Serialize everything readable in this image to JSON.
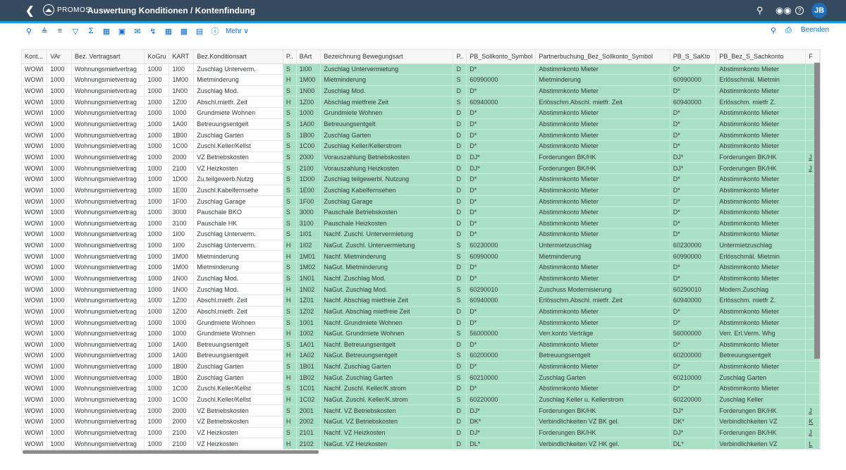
{
  "shell": {
    "back_icon": "chevron-left-icon",
    "logo": "PROMOS",
    "title": "Auswertung Konditionen / Kontenfindung",
    "icons": [
      "search-icon",
      "binoculars-icon",
      "help-icon"
    ],
    "avatar": "JB"
  },
  "toolbar": {
    "icons": [
      "zoom-icon",
      "sort-ascending-icon",
      "sort-descending-icon",
      "filter-icon",
      "sum-icon",
      "export-icon",
      "import-icon",
      "email-icon",
      "chart-icon",
      "layout-icon",
      "layout-change-icon",
      "layout-save-icon",
      "info-icon"
    ],
    "more_label": "Mehr ∨",
    "right_search_icon": "search-icon",
    "print_icon": "print-icon",
    "exit_label": "Beenden"
  },
  "colors": {
    "shell": "#354a5f",
    "accent": "#1a9be6",
    "highlight": "#a9dfc4"
  },
  "table": {
    "columns": [
      "Kont...",
      "VAr",
      "Bez. Vertragsart",
      "KoGru",
      "KART",
      "Bez.Konditionsart",
      "P..",
      "BArt",
      "Bezeichnung Bewegungsart",
      "P..",
      "PB_Sollkonto_Symbol",
      "Partnerbuchung_Bez_Sollkonto_Symbol",
      "PB_S_SaKto",
      "PB_Bez_S_Sachkonto",
      "F"
    ],
    "rows": [
      [
        "WOWI",
        "1000",
        "Wohnungsmietvertrag",
        "1000",
        "1I00",
        "Zuschlag Unterverm.",
        "S",
        "1I00",
        "Zuschlag Untervermietung",
        "D",
        "D*",
        "Abstimmkonto Mieter",
        "D*",
        "Abstimmkonto Mieter",
        ""
      ],
      [
        "WOWI",
        "1000",
        "Wohnungsmietvertrag",
        "1000",
        "1M00",
        "Mietminderung",
        "H",
        "1M00",
        "Mietminderung",
        "S",
        "60990000",
        "Mietminderung",
        "60990000",
        "Erlösschmäl. Mietmin",
        ""
      ],
      [
        "WOWI",
        "1000",
        "Wohnungsmietvertrag",
        "1000",
        "1N00",
        "Zuschlag Mod.",
        "S",
        "1N00",
        "Zuschlag Mod.",
        "D",
        "D*",
        "Abstimmkonto Mieter",
        "D*",
        "Abstimmkonto Mieter",
        ""
      ],
      [
        "WOWI",
        "1000",
        "Wohnungsmietvertrag",
        "1000",
        "1Z00",
        "Abschl.mietfr. Zeit",
        "H",
        "1Z00",
        "Abschlag mietfreie Zeit",
        "S",
        "60940000",
        "Erlösschm.Abschl. mietfr. Zeit",
        "60940000",
        "Erlösschm. mietfr Z.",
        ""
      ],
      [
        "WOWI",
        "1000",
        "Wohnungsmietvertrag",
        "1000",
        "1000",
        "Grundmiete Wohnen",
        "S",
        "1000",
        "Grundmiete Wohnen",
        "D",
        "D*",
        "Abstimmkonto Mieter",
        "D*",
        "Abstimmkonto Mieter",
        ""
      ],
      [
        "WOWI",
        "1000",
        "Wohnungsmietvertrag",
        "1000",
        "1A00",
        "Betreuungsentgelt",
        "S",
        "1A00",
        "Betreuungsentgelt",
        "D",
        "D*",
        "Abstimmkonto Mieter",
        "D*",
        "Abstimmkonto Mieter",
        ""
      ],
      [
        "WOWI",
        "1000",
        "Wohnungsmietvertrag",
        "1000",
        "1B00",
        "Zuschlag Garten",
        "S",
        "1B00",
        "Zuschlag Garten",
        "D",
        "D*",
        "Abstimmkonto Mieter",
        "D*",
        "Abstimmkonto Mieter",
        ""
      ],
      [
        "WOWI",
        "1000",
        "Wohnungsmietvertrag",
        "1000",
        "1C00",
        "Zuschl.Keller/Kellst",
        "S",
        "1C00",
        "Zuschlag Keller/Kellerstrom",
        "D",
        "D*",
        "Abstimmkonto Mieter",
        "D*",
        "Abstimmkonto Mieter",
        ""
      ],
      [
        "WOWI",
        "1000",
        "Wohnungsmietvertrag",
        "1000",
        "2000",
        "VZ Betriebskosten",
        "S",
        "2000",
        "Vorauszahlung Betriebskosten",
        "D",
        "DJ*",
        "Forderungen BK/HK",
        "DJ*",
        "Forderungen BK/HK",
        "J"
      ],
      [
        "WOWI",
        "1000",
        "Wohnungsmietvertrag",
        "1000",
        "2100",
        "VZ Heizkosten",
        "S",
        "2100",
        "Vorauszahlung Heizkosten",
        "D",
        "DJ*",
        "Forderungen BK/HK",
        "DJ*",
        "Forderungen BK/HK",
        "J"
      ],
      [
        "WOWI",
        "1000",
        "Wohnungsmietvertrag",
        "1000",
        "1D00",
        "Zu.teilgewerb.Nutzg",
        "S",
        "1D00",
        "Zuschlag teilgewerbl. Nutzung",
        "D",
        "D*",
        "Abstimmkonto Mieter",
        "D*",
        "Abstimmkonto Mieter",
        ""
      ],
      [
        "WOWI",
        "1000",
        "Wohnungsmietvertrag",
        "1000",
        "1E00",
        "Zuschl.Kabelfernsehe",
        "S",
        "1E00",
        "Zuschlag Kabelfernsehen",
        "D",
        "D*",
        "Abstimmkonto Mieter",
        "D*",
        "Abstimmkonto Mieter",
        ""
      ],
      [
        "WOWI",
        "1000",
        "Wohnungsmietvertrag",
        "1000",
        "1F00",
        "Zuschlag Garage",
        "S",
        "1F00",
        "Zuschlag Garage",
        "D",
        "D*",
        "Abstimmkonto Mieter",
        "D*",
        "Abstimmkonto Mieter",
        ""
      ],
      [
        "WOWI",
        "1000",
        "Wohnungsmietvertrag",
        "1000",
        "3000",
        "Pauschale BKO",
        "S",
        "3000",
        "Pauschale Betriebskosten",
        "D",
        "D*",
        "Abstimmkonto Mieter",
        "D*",
        "Abstimmkonto Mieter",
        ""
      ],
      [
        "WOWI",
        "1000",
        "Wohnungsmietvertrag",
        "1000",
        "3100",
        "Pauschale HK",
        "S",
        "3100",
        "Pauschale Heizkosten",
        "D",
        "D*",
        "Abstimmkonto Mieter",
        "D*",
        "Abstimmkonto Mieter",
        ""
      ],
      [
        "WOWI",
        "1000",
        "Wohnungsmietvertrag",
        "1000",
        "1I00",
        "Zuschlag Unterverm.",
        "S",
        "1I01",
        "Nachf. Zuschl. Untervermietung",
        "D",
        "D*",
        "Abstimmkonto Mieter",
        "D*",
        "Abstimmkonto Mieter",
        ""
      ],
      [
        "WOWI",
        "1000",
        "Wohnungsmietvertrag",
        "1000",
        "1I00",
        "Zuschlag Unterverm.",
        "H",
        "1I02",
        "NaGut. Zuschl. Untervermietung",
        "S",
        "60230000",
        "Untermietzuschlag",
        "60230000",
        "Untermietzuschlag",
        ""
      ],
      [
        "WOWI",
        "1000",
        "Wohnungsmietvertrag",
        "1000",
        "1M00",
        "Mietminderung",
        "H",
        "1M01",
        "Nachf. Mietminderung",
        "S",
        "60990000",
        "Mietminderung",
        "60990000",
        "Erlösschmäl. Mietmin",
        ""
      ],
      [
        "WOWI",
        "1000",
        "Wohnungsmietvertrag",
        "1000",
        "1M00",
        "Mietminderung",
        "S",
        "1M02",
        "NaGut. Mietminderung",
        "D",
        "D*",
        "Abstimmkonto Mieter",
        "D*",
        "Abstimmkonto Mieter",
        ""
      ],
      [
        "WOWI",
        "1000",
        "Wohnungsmietvertrag",
        "1000",
        "1N00",
        "Zuschlag Mod.",
        "S",
        "1N01",
        "Nachf. Zuschlag Mod.",
        "D",
        "D*",
        "Abstimmkonto Mieter",
        "D*",
        "Abstimmkonto Mieter",
        ""
      ],
      [
        "WOWI",
        "1000",
        "Wohnungsmietvertrag",
        "1000",
        "1N00",
        "Zuschlag Mod.",
        "H",
        "1N02",
        "NaGut. Zuschlag Mod.",
        "S",
        "60290010",
        "Zuschuss Modernisierung",
        "60290010",
        "Modern.Zuschlag",
        ""
      ],
      [
        "WOWI",
        "1000",
        "Wohnungsmietvertrag",
        "1000",
        "1Z00",
        "Abschl.mietfr. Zeit",
        "H",
        "1Z01",
        "Nachf. Abschlag mietfreie Zeit",
        "S",
        "60940000",
        "Erlösschm.Abschl. mietfr. Zeit",
        "60940000",
        "Erlösschm. mietfr Z.",
        ""
      ],
      [
        "WOWI",
        "1000",
        "Wohnungsmietvertrag",
        "1000",
        "1Z00",
        "Abschl.mietfr. Zeit",
        "S",
        "1Z02",
        "NaGut. Abschlag mietfreie Zeit",
        "D",
        "D*",
        "Abstimmkonto Mieter",
        "D*",
        "Abstimmkonto Mieter",
        ""
      ],
      [
        "WOWI",
        "1000",
        "Wohnungsmietvertrag",
        "1000",
        "1000",
        "Grundmiete Wohnen",
        "S",
        "1001",
        "Nachf. Grundmiete Wohnen",
        "D",
        "D*",
        "Abstimmkonto Mieter",
        "D*",
        "Abstimmkonto Mieter",
        ""
      ],
      [
        "WOWI",
        "1000",
        "Wohnungsmietvertrag",
        "1000",
        "1000",
        "Grundmiete Wohnen",
        "H",
        "1002",
        "NaGut. Grundmiete Wohnen",
        "S",
        "56000000",
        "Verr.konto Verträge",
        "56000000",
        "Verr. Erl.Verm. Whg",
        ""
      ],
      [
        "WOWI",
        "1000",
        "Wohnungsmietvertrag",
        "1000",
        "1A00",
        "Betreuungsentgelt",
        "S",
        "1A01",
        "Nachf. Betreuungsentgelt",
        "D",
        "D*",
        "Abstimmkonto Mieter",
        "D*",
        "Abstimmkonto Mieter",
        ""
      ],
      [
        "WOWI",
        "1000",
        "Wohnungsmietvertrag",
        "1000",
        "1A00",
        "Betreuungsentgelt",
        "H",
        "1A02",
        "NaGut. Betreuungsentgelt",
        "S",
        "60200000",
        "Betreuungsentgelt",
        "60200000",
        "Betreuungsentgelt",
        ""
      ],
      [
        "WOWI",
        "1000",
        "Wohnungsmietvertrag",
        "1000",
        "1B00",
        "Zuschlag Garten",
        "S",
        "1B01",
        "Nachf. Zuschlag Garten",
        "D",
        "D*",
        "Abstimmkonto Mieter",
        "D*",
        "Abstimmkonto Mieter",
        ""
      ],
      [
        "WOWI",
        "1000",
        "Wohnungsmietvertrag",
        "1000",
        "1B00",
        "Zuschlag Garten",
        "H",
        "1B02",
        "NaGut. Zuschlag Garten",
        "S",
        "60210000",
        "Zuschlag Garten",
        "60210000",
        "Zuschlag Garten",
        ""
      ],
      [
        "WOWI",
        "1000",
        "Wohnungsmietvertrag",
        "1000",
        "1C00",
        "Zuschl.Keller/Kellst",
        "S",
        "1C01",
        "Nachf. Zuschl. Keller/K.strom",
        "D",
        "D*",
        "Abstimmkonto Mieter",
        "D*",
        "Abstimmkonto Mieter",
        ""
      ],
      [
        "WOWI",
        "1000",
        "Wohnungsmietvertrag",
        "1000",
        "1C00",
        "Zuschl.Keller/Kellst",
        "H",
        "1C02",
        "NaGut. Zuschl. Keller/K.strom",
        "S",
        "60220000",
        "Zuschlag Keller u. Kellerstrom",
        "60220000",
        "Zuschlag Keller",
        ""
      ],
      [
        "WOWI",
        "1000",
        "Wohnungsmietvertrag",
        "1000",
        "2000",
        "VZ Betriebskosten",
        "S",
        "2001",
        "Nachf. VZ Betriebskosten",
        "D",
        "DJ*",
        "Forderungen BK/HK",
        "DJ*",
        "Forderungen BK/HK",
        "J"
      ],
      [
        "WOWI",
        "1000",
        "Wohnungsmietvertrag",
        "1000",
        "2000",
        "VZ Betriebskosten",
        "H",
        "2002",
        "NaGut. VZ Betriebskosten",
        "D",
        "DK*",
        "Verbindlichkeiten VZ BK gel.",
        "DK*",
        "Verbindlichkeiten VZ",
        "K"
      ],
      [
        "WOWI",
        "1000",
        "Wohnungsmietvertrag",
        "1000",
        "2100",
        "VZ Heizkosten",
        "S",
        "2101",
        "Nachf. VZ Heizkosten",
        "D",
        "DJ*",
        "Forderungen BK/HK",
        "DJ*",
        "Forderungen BK/HK",
        "J"
      ],
      [
        "WOWI",
        "1000",
        "Wohnungsmietvertrag",
        "1000",
        "2100",
        "VZ Heizkosten",
        "H",
        "2102",
        "NaGut. VZ Heizkosten",
        "D",
        "DL*",
        "Verbindlichkeiten VZ HK gel.",
        "DL*",
        "Verbindlichkeiten VZ",
        "L"
      ]
    ]
  }
}
